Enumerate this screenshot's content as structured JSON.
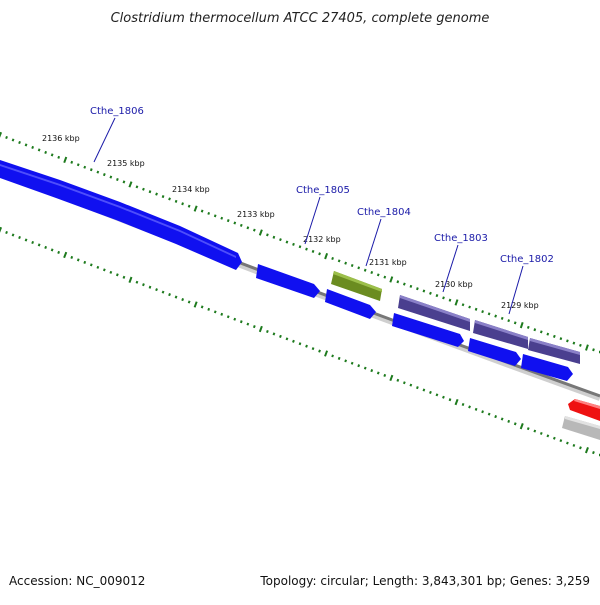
{
  "title": "Clostridium thermocellum ATCC 27405, complete genome",
  "footer": {
    "accession": "Accession: NC_009012",
    "summary": "Topology: circular; Length: 3,843,301 bp; Genes: 3,259"
  },
  "kbp_ticks": [
    "2136 kbp",
    "2135 kbp",
    "2134 kbp",
    "2133 kbp",
    "2132 kbp",
    "2131 kbp",
    "2130 kbp",
    "2129 kbp"
  ],
  "gene_labels": [
    "Cthe_1806",
    "Cthe_1805",
    "Cthe_1804",
    "Cthe_1803",
    "Cthe_1802"
  ],
  "colors": {
    "blue": "#1010f0",
    "dark_purple": "#4a3f8f",
    "olive": "#6b8c20",
    "red": "#ee1111",
    "gray": "#b8b8b8",
    "backbone": "#777777",
    "tick_green": "#1d7a1d",
    "label_blue": "#1a1aa8"
  }
}
